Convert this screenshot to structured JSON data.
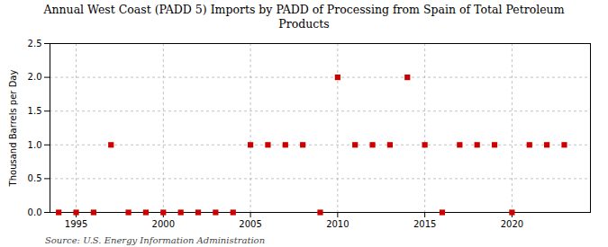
{
  "chart_data": {
    "type": "scatter",
    "title": "Annual West Coast (PADD 5) Imports by PADD of Processing from Spain of Total Petroleum\nProducts",
    "ylabel": "Thousand Barrels per Day",
    "source": "Source: U.S. Energy Information Administration",
    "x": [
      1994,
      1995,
      1996,
      1997,
      1998,
      1999,
      2000,
      2001,
      2002,
      2003,
      2004,
      2005,
      2006,
      2007,
      2008,
      2009,
      2010,
      2011,
      2012,
      2013,
      2014,
      2015,
      2016,
      2017,
      2018,
      2019,
      2020,
      2021,
      2022,
      2023
    ],
    "values": [
      0,
      0,
      0,
      1,
      0,
      0,
      0,
      0,
      0,
      0,
      0,
      1,
      1,
      1,
      1,
      0,
      2,
      1,
      1,
      1,
      2,
      1,
      0,
      1,
      1,
      1,
      0,
      1,
      1,
      1
    ],
    "color": "#cc0000",
    "marker": "square",
    "xlim": [
      1993.5,
      2024.5
    ],
    "xticks": [
      1995,
      2000,
      2005,
      2010,
      2015,
      2020
    ],
    "ylim": [
      0,
      2.5
    ],
    "yticks": [
      {
        "value": 0,
        "label": "0.0"
      },
      0.5,
      {
        "value": 1,
        "label": "1.0"
      },
      1.5,
      {
        "value": 2,
        "label": "2.0"
      },
      2.5
    ],
    "grid": true
  }
}
